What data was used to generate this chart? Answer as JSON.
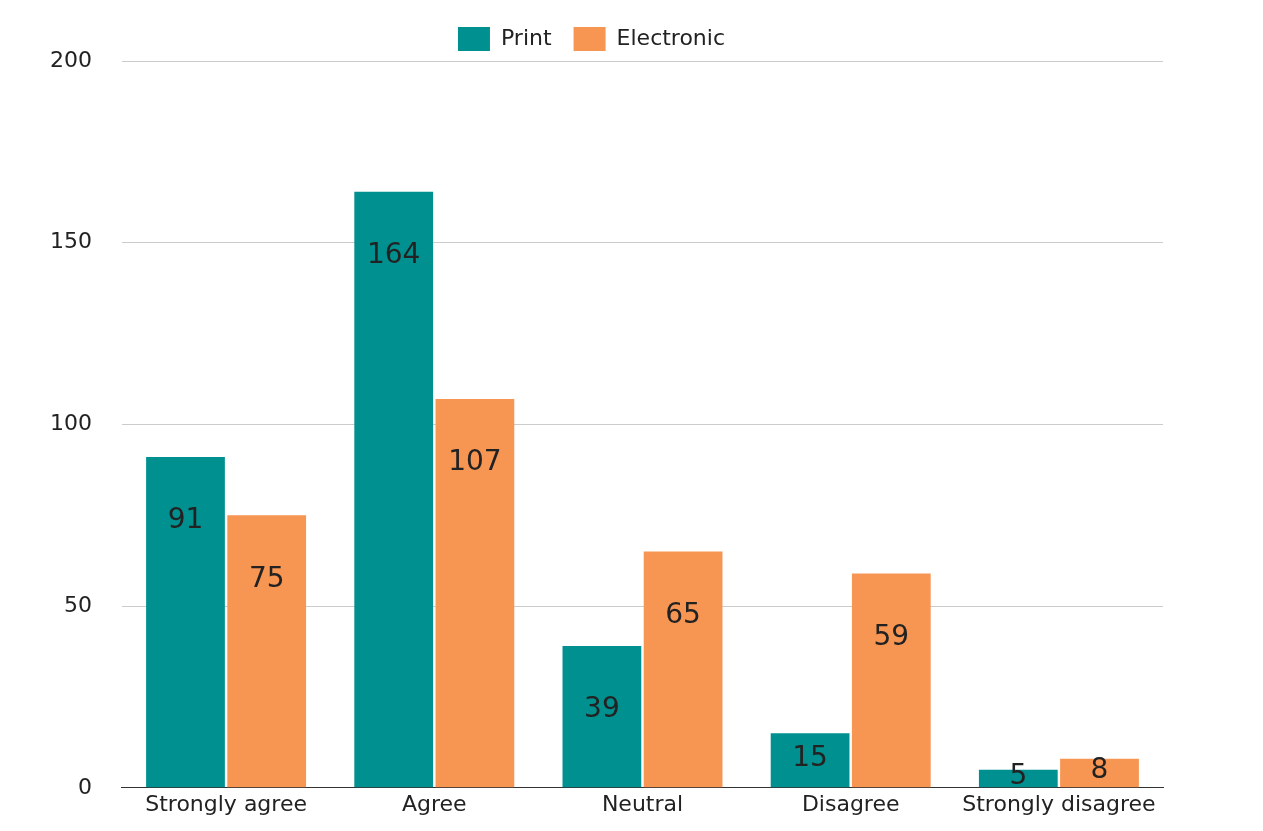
{
  "chart_data": {
    "type": "bar",
    "categories": [
      "Strongly agree",
      "Agree",
      "Neutral",
      "Disagree",
      "Strongly disagree"
    ],
    "series": [
      {
        "name": "Print",
        "color": "#00908f",
        "values": [
          91,
          164,
          39,
          15,
          5
        ]
      },
      {
        "name": "Electronic",
        "color": "#f79552",
        "values": [
          75,
          107,
          65,
          59,
          8
        ]
      }
    ],
    "ylim": [
      0,
      200
    ],
    "yticks": [
      0,
      50,
      100,
      150,
      200
    ],
    "grid": "y",
    "legend": "top",
    "data_labels": true
  }
}
